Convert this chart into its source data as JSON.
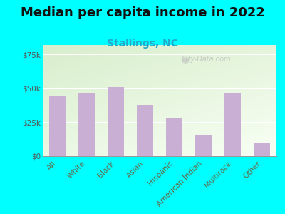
{
  "title": "Median per capita income in 2022",
  "subtitle": "Stallings, NC",
  "categories": [
    "All",
    "White",
    "Black",
    "Asian",
    "Hispanic",
    "American Indian",
    "Multirace",
    "Other"
  ],
  "values": [
    44000,
    47000,
    51000,
    38000,
    28000,
    16000,
    47000,
    10000
  ],
  "bar_color": "#c9afd4",
  "background_outer": "#00FFFF",
  "yticks": [
    0,
    25000,
    50000,
    75000
  ],
  "ytick_labels": [
    "$0",
    "$25k",
    "$50k",
    "$75k"
  ],
  "ylim": [
    0,
    82000
  ],
  "title_fontsize": 13,
  "subtitle_fontsize": 10,
  "tick_label_fontsize": 7.5,
  "ytick_label_color": "#555555",
  "xtick_label_color": "#666644",
  "title_color": "#111111",
  "subtitle_color": "#22aacc",
  "watermark": "City-Data.com",
  "watermark_color": "#bbbbbb",
  "gradient_top": "#d8eecc",
  "gradient_bottom": "#f8fff4",
  "bar_width": 0.55
}
